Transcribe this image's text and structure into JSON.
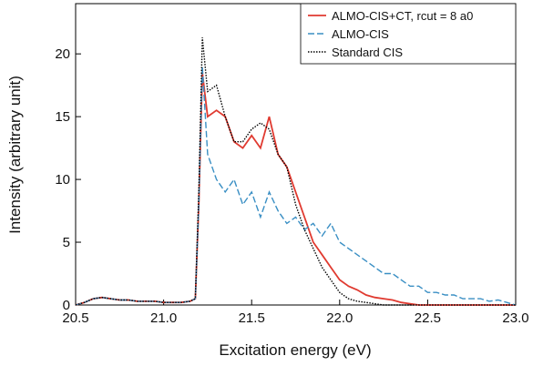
{
  "chart_data": {
    "type": "line",
    "xlabel": "Excitation energy (eV)",
    "ylabel": "Intensity (arbitrary unit)",
    "x": [
      20.5,
      20.55,
      20.6,
      20.65,
      20.7,
      20.75,
      20.8,
      20.85,
      20.9,
      20.95,
      21.0,
      21.05,
      21.1,
      21.15,
      21.18,
      21.2,
      21.22,
      21.25,
      21.3,
      21.35,
      21.4,
      21.45,
      21.5,
      21.55,
      21.6,
      21.65,
      21.7,
      21.75,
      21.8,
      21.85,
      21.9,
      21.95,
      22.0,
      22.05,
      22.1,
      22.15,
      22.2,
      22.25,
      22.3,
      22.35,
      22.4,
      22.45,
      22.5,
      22.55,
      22.6,
      22.65,
      22.7,
      22.75,
      22.8,
      22.85,
      22.9,
      22.95,
      23.0
    ],
    "series": [
      {
        "name": "ALMO-CIS+CT, rcut = 8 a0",
        "color": "#e03a30",
        "dash": "none",
        "values": [
          0,
          0.2,
          0.5,
          0.6,
          0.5,
          0.4,
          0.4,
          0.3,
          0.3,
          0.3,
          0.2,
          0.2,
          0.2,
          0.3,
          0.5,
          8,
          18.5,
          15,
          15.5,
          15,
          13,
          12.5,
          13.5,
          12.5,
          15,
          12,
          11,
          9,
          7,
          5,
          4,
          3,
          2,
          1.5,
          1.2,
          0.8,
          0.6,
          0.5,
          0.4,
          0.2,
          0.1,
          0,
          0,
          0,
          0,
          0,
          0,
          0,
          0,
          0,
          0,
          0,
          0
        ]
      },
      {
        "name": "ALMO-CIS",
        "color": "#3a8fc4",
        "dash": "7,3",
        "values": [
          0,
          0.2,
          0.5,
          0.6,
          0.5,
          0.4,
          0.4,
          0.3,
          0.3,
          0.3,
          0.2,
          0.2,
          0.2,
          0.3,
          0.5,
          8,
          19,
          12,
          10,
          9,
          10,
          8,
          9,
          7,
          9,
          7.5,
          6.5,
          7,
          6,
          6.5,
          5.5,
          6.5,
          5,
          4.5,
          4,
          3.5,
          3,
          2.5,
          2.5,
          2,
          1.5,
          1.5,
          1,
          1,
          0.8,
          0.8,
          0.5,
          0.5,
          0.5,
          0.3,
          0.4,
          0.2,
          0
        ]
      },
      {
        "name": "Standard CIS",
        "color": "#000000",
        "dash": "1.5,1.5",
        "values": [
          0,
          0.2,
          0.5,
          0.6,
          0.5,
          0.4,
          0.4,
          0.3,
          0.3,
          0.3,
          0.2,
          0.2,
          0.2,
          0.3,
          0.5,
          9,
          21.3,
          17,
          17.5,
          15,
          13,
          13,
          14,
          14.5,
          14,
          12,
          11,
          8,
          6,
          4.5,
          3,
          2,
          1,
          0.5,
          0.3,
          0.2,
          0.1,
          0,
          0,
          0,
          0,
          0,
          0,
          0,
          0,
          0,
          0,
          0,
          0,
          0,
          0,
          0,
          0
        ]
      }
    ],
    "xlim": [
      20.5,
      23.0
    ],
    "xticks": [
      20.5,
      {
        "value": 21,
        "label": "21.0"
      },
      21.5,
      {
        "value": 22,
        "label": "22.0"
      },
      22.5,
      {
        "value": 23,
        "label": "23.0"
      }
    ],
    "ylim": [
      0,
      24
    ],
    "yticks": [
      0,
      5,
      10,
      15,
      20
    ],
    "legend": "upper-right"
  }
}
